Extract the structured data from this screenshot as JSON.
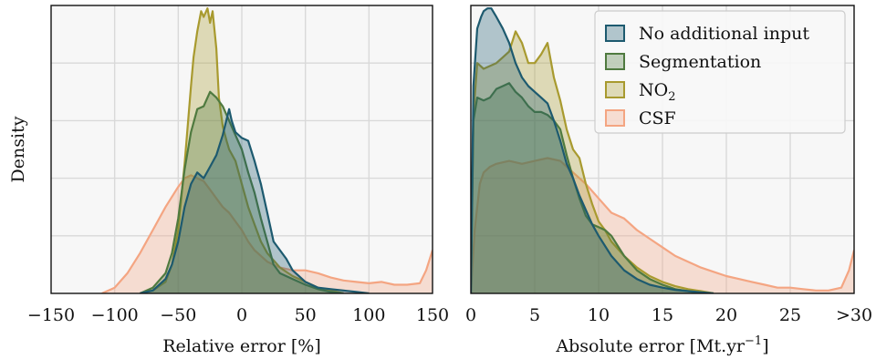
{
  "chart_data": [
    {
      "type": "area",
      "subtype": "kde-density",
      "xlabel": "Relative error [%]",
      "ylabel": "Density",
      "xlim": [
        -150,
        150
      ],
      "xticks": [
        "−150",
        "−100",
        "−50",
        "0",
        "50",
        "100",
        "150"
      ],
      "xtick_values": [
        -150,
        -100,
        -50,
        0,
        50,
        100,
        150
      ],
      "ylim": [
        0,
        1
      ],
      "ytick_values": [
        0.2,
        0.4,
        0.6,
        0.8
      ],
      "grid": true,
      "series": [
        {
          "name": "CSF",
          "color": "#f4a582",
          "x": [
            -110,
            -100,
            -90,
            -80,
            -70,
            -60,
            -50,
            -45,
            -40,
            -35,
            -30,
            -25,
            -20,
            -15,
            -10,
            -5,
            0,
            5,
            10,
            20,
            30,
            40,
            50,
            60,
            70,
            80,
            90,
            100,
            110,
            120,
            130,
            140,
            145,
            150
          ],
          "y": [
            0.0,
            0.02,
            0.07,
            0.14,
            0.22,
            0.3,
            0.37,
            0.4,
            0.41,
            0.4,
            0.39,
            0.36,
            0.33,
            0.3,
            0.28,
            0.25,
            0.22,
            0.18,
            0.15,
            0.11,
            0.09,
            0.08,
            0.08,
            0.07,
            0.055,
            0.045,
            0.04,
            0.035,
            0.04,
            0.03,
            0.03,
            0.035,
            0.08,
            0.15
          ]
        },
        {
          "name": "NO₂",
          "color": "#a89a2f",
          "x": [
            -80,
            -70,
            -60,
            -55,
            -50,
            -45,
            -40,
            -38,
            -35,
            -32,
            -30,
            -27,
            -25,
            -23,
            -20,
            -18,
            -15,
            -12,
            -10,
            -5,
            0,
            5,
            10,
            15,
            20,
            30,
            40,
            50,
            60,
            70,
            80
          ],
          "y": [
            0.0,
            0.01,
            0.04,
            0.1,
            0.22,
            0.45,
            0.72,
            0.82,
            0.91,
            0.98,
            0.96,
            0.99,
            0.94,
            0.98,
            0.85,
            0.68,
            0.58,
            0.53,
            0.5,
            0.46,
            0.38,
            0.3,
            0.24,
            0.18,
            0.14,
            0.09,
            0.06,
            0.04,
            0.02,
            0.01,
            0.0
          ]
        },
        {
          "name": "Segmentation",
          "color": "#4f7a3f",
          "x": [
            -80,
            -70,
            -60,
            -55,
            -50,
            -45,
            -40,
            -35,
            -30,
            -25,
            -20,
            -15,
            -10,
            -5,
            0,
            5,
            10,
            15,
            20,
            25,
            30,
            40,
            50,
            60,
            70,
            80
          ],
          "y": [
            0.0,
            0.02,
            0.07,
            0.14,
            0.26,
            0.43,
            0.56,
            0.64,
            0.65,
            0.7,
            0.68,
            0.65,
            0.6,
            0.55,
            0.5,
            0.42,
            0.35,
            0.26,
            0.18,
            0.1,
            0.07,
            0.05,
            0.03,
            0.015,
            0.005,
            0.0
          ]
        },
        {
          "name": "No additional input",
          "color": "#1d5a6f",
          "x": [
            -80,
            -70,
            -60,
            -55,
            -50,
            -45,
            -40,
            -35,
            -30,
            -25,
            -20,
            -15,
            -10,
            -8,
            -5,
            0,
            5,
            10,
            15,
            20,
            25,
            30,
            35,
            40,
            50,
            60,
            70,
            80,
            90,
            100
          ],
          "y": [
            0.0,
            0.01,
            0.05,
            0.1,
            0.18,
            0.3,
            0.38,
            0.42,
            0.4,
            0.44,
            0.48,
            0.55,
            0.64,
            0.6,
            0.56,
            0.54,
            0.53,
            0.46,
            0.38,
            0.28,
            0.18,
            0.15,
            0.12,
            0.08,
            0.04,
            0.02,
            0.015,
            0.01,
            0.005,
            0.0
          ]
        }
      ]
    },
    {
      "type": "area",
      "subtype": "kde-density",
      "xlabel": "Absolute error [Mt.yr",
      "xlabel_sup": "−1",
      "xlabel_end": "]",
      "xlim": [
        0,
        30
      ],
      "xticks": [
        "0",
        "5",
        "10",
        "15",
        "20",
        "25",
        ">30"
      ],
      "xtick_values": [
        0,
        5,
        10,
        15,
        20,
        25,
        30
      ],
      "ylim": [
        0,
        1
      ],
      "ytick_values": [
        0.2,
        0.4,
        0.6,
        0.8
      ],
      "grid": true,
      "legend_position": "top-right",
      "legend": [
        {
          "label": "No additional input",
          "color": "#1d5a6f"
        },
        {
          "label": "Segmentation",
          "color": "#4f7a3f"
        },
        {
          "label": "NO",
          "sub": "2",
          "color": "#a89a2f"
        },
        {
          "label": "CSF",
          "color": "#f4a582"
        }
      ],
      "series": [
        {
          "name": "CSF",
          "color": "#f4a582",
          "x": [
            0,
            0.3,
            0.7,
            1,
            1.5,
            2,
            3,
            4,
            5,
            6,
            7,
            8,
            9,
            10,
            11,
            12,
            13,
            14,
            15,
            16,
            17,
            18,
            19,
            20,
            21,
            22,
            23,
            24,
            25,
            26,
            27,
            28,
            29,
            29.6,
            30
          ],
          "y": [
            0.0,
            0.22,
            0.38,
            0.42,
            0.44,
            0.45,
            0.46,
            0.45,
            0.46,
            0.47,
            0.46,
            0.42,
            0.38,
            0.33,
            0.28,
            0.26,
            0.22,
            0.19,
            0.16,
            0.13,
            0.11,
            0.09,
            0.075,
            0.06,
            0.05,
            0.04,
            0.03,
            0.02,
            0.02,
            0.015,
            0.01,
            0.01,
            0.02,
            0.08,
            0.15
          ]
        },
        {
          "name": "NO₂",
          "color": "#a89a2f",
          "x": [
            0,
            0.2,
            0.5,
            1,
            1.5,
            2,
            2.5,
            3,
            3.5,
            4,
            4.5,
            5,
            5.5,
            6,
            6.5,
            7,
            7.5,
            8,
            8.5,
            9,
            9.5,
            10,
            10.5,
            11,
            12,
            13,
            14,
            15,
            16,
            17,
            18,
            19
          ],
          "y": [
            0.0,
            0.62,
            0.8,
            0.78,
            0.79,
            0.8,
            0.82,
            0.84,
            0.91,
            0.87,
            0.8,
            0.8,
            0.83,
            0.87,
            0.75,
            0.67,
            0.57,
            0.5,
            0.47,
            0.38,
            0.31,
            0.25,
            0.22,
            0.18,
            0.13,
            0.09,
            0.06,
            0.04,
            0.025,
            0.015,
            0.008,
            0.0
          ]
        },
        {
          "name": "Segmentation",
          "color": "#4f7a3f",
          "x": [
            0,
            0.2,
            0.5,
            1,
            1.5,
            2,
            2.5,
            3,
            3.5,
            4,
            4.5,
            5,
            5.5,
            6,
            6.5,
            7,
            7.5,
            8,
            8.5,
            9,
            9.5,
            10,
            10.5,
            11,
            12,
            13,
            14,
            15,
            16,
            17,
            18
          ],
          "y": [
            0.0,
            0.6,
            0.68,
            0.67,
            0.68,
            0.71,
            0.72,
            0.73,
            0.7,
            0.68,
            0.65,
            0.63,
            0.63,
            0.62,
            0.6,
            0.57,
            0.48,
            0.4,
            0.33,
            0.27,
            0.24,
            0.23,
            0.22,
            0.2,
            0.13,
            0.08,
            0.05,
            0.03,
            0.015,
            0.008,
            0.0
          ]
        },
        {
          "name": "No additional input",
          "color": "#1d5a6f",
          "x": [
            0,
            0.2,
            0.5,
            0.8,
            1,
            1.3,
            1.6,
            2,
            2.5,
            3,
            3.5,
            4,
            4.5,
            5,
            5.5,
            6,
            6.5,
            7,
            7.5,
            8,
            8.5,
            9,
            9.5,
            10,
            11,
            12,
            13,
            14,
            15,
            16,
            17,
            18,
            19
          ],
          "y": [
            0.0,
            0.72,
            0.92,
            0.96,
            0.98,
            0.99,
            0.99,
            0.96,
            0.92,
            0.87,
            0.8,
            0.75,
            0.72,
            0.7,
            0.68,
            0.66,
            0.6,
            0.53,
            0.45,
            0.4,
            0.34,
            0.29,
            0.24,
            0.2,
            0.13,
            0.08,
            0.05,
            0.03,
            0.02,
            0.012,
            0.008,
            0.004,
            0.0
          ]
        }
      ]
    }
  ]
}
